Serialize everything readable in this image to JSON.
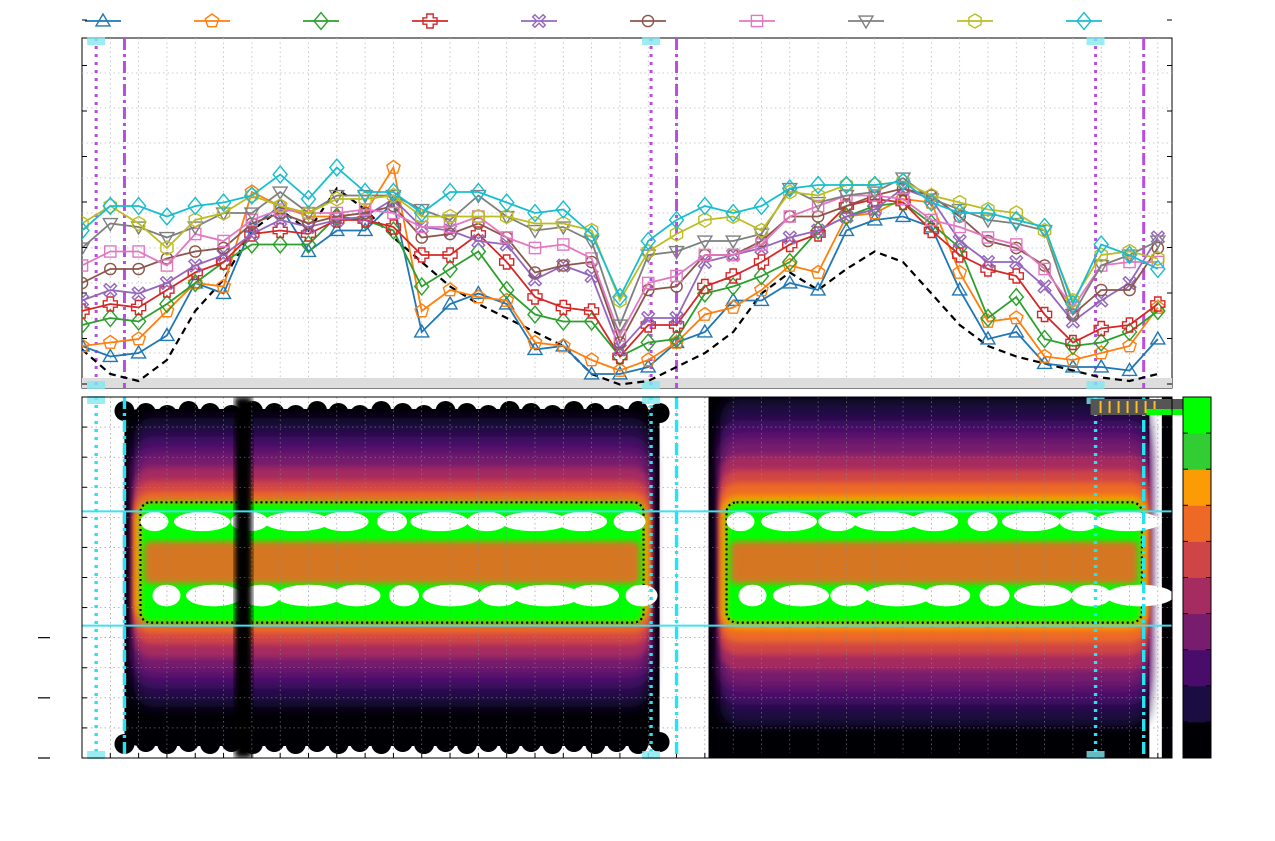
{
  "chart_data": [
    {
      "type": "line",
      "title": "",
      "xlabel": "",
      "ylabel": "",
      "grid": true,
      "legend_position": "top",
      "x": [
        0,
        1,
        2,
        3,
        4,
        5,
        6,
        7,
        8,
        9,
        10,
        11,
        12,
        13,
        14,
        15,
        16,
        17,
        18,
        19,
        20,
        21,
        22,
        23,
        24,
        25,
        26,
        27,
        28,
        29,
        30,
        31,
        32,
        33,
        34,
        35,
        36,
        37,
        38
      ],
      "xlim": [
        0,
        38.5
      ],
      "ylim": [
        0,
        10
      ],
      "series": [
        {
          "color": "#1f77b4",
          "marker": "triangle-up",
          "values": [
            1.2,
            0.9,
            1.0,
            1.5,
            3.0,
            2.7,
            4.6,
            5.2,
            3.9,
            4.5,
            4.5,
            5.3,
            1.6,
            2.4,
            2.7,
            2.4,
            1.1,
            1.2,
            0.4,
            0.4,
            0.6,
            1.3,
            1.6,
            2.5,
            2.5,
            3.0,
            2.8,
            4.5,
            4.8,
            4.9,
            4.6,
            2.8,
            1.4,
            1.6,
            0.7,
            0.6,
            0.6,
            0.5,
            1.4
          ]
        },
        {
          "color": "#ff7f0e",
          "marker": "pentagon",
          "values": [
            1.2,
            1.3,
            1.4,
            2.2,
            3.0,
            2.9,
            5.6,
            5.2,
            4.9,
            4.9,
            5.0,
            6.3,
            2.2,
            2.8,
            2.6,
            2.5,
            1.3,
            1.2,
            0.8,
            0.5,
            0.8,
            1.3,
            2.1,
            2.3,
            2.8,
            3.5,
            3.3,
            4.9,
            5.0,
            5.4,
            5.3,
            3.3,
            1.9,
            2.0,
            0.9,
            0.8,
            1.0,
            1.2,
            2.3
          ]
        },
        {
          "color": "#2ca02c",
          "marker": "diamond",
          "values": [
            1.8,
            2.0,
            1.9,
            2.4,
            3.0,
            3.6,
            4.1,
            4.1,
            4.1,
            4.9,
            4.8,
            4.5,
            2.9,
            3.4,
            3.9,
            2.8,
            2.1,
            1.9,
            1.9,
            0.9,
            1.3,
            1.4,
            2.7,
            2.9,
            3.2,
            3.6,
            4.5,
            4.9,
            5.2,
            5.3,
            4.7,
            4.0,
            2.0,
            2.6,
            1.4,
            1.2,
            1.3,
            1.6,
            2.2
          ]
        },
        {
          "color": "#d62728",
          "marker": "plus",
          "values": [
            2.2,
            2.4,
            2.3,
            2.8,
            3.3,
            3.6,
            4.4,
            4.5,
            4.4,
            4.8,
            4.8,
            4.6,
            3.8,
            3.8,
            4.4,
            3.6,
            2.6,
            2.3,
            2.2,
            0.9,
            1.8,
            1.8,
            2.9,
            3.2,
            3.6,
            4.1,
            4.4,
            5.2,
            5.4,
            5.3,
            4.5,
            3.8,
            3.4,
            3.2,
            2.1,
            1.3,
            1.7,
            1.8,
            2.4
          ]
        },
        {
          "color": "#9467bd",
          "marker": "x",
          "values": [
            2.5,
            2.8,
            2.7,
            3.0,
            3.5,
            3.8,
            4.4,
            4.8,
            4.6,
            4.8,
            4.9,
            5.4,
            4.6,
            4.5,
            4.2,
            4.1,
            3.1,
            3.5,
            3.2,
            1.1,
            2.0,
            2.0,
            3.6,
            3.8,
            4.0,
            4.3,
            4.5,
            4.9,
            5.1,
            5.7,
            5.4,
            4.2,
            3.6,
            3.6,
            2.9,
            1.9,
            2.5,
            3.0,
            4.3
          ]
        },
        {
          "color": "#8c564b",
          "marker": "circle",
          "values": [
            3.0,
            3.4,
            3.4,
            3.7,
            3.9,
            4.0,
            4.7,
            5.0,
            4.7,
            4.9,
            5.0,
            5.2,
            4.3,
            4.4,
            4.7,
            4.3,
            3.3,
            3.5,
            3.6,
            1.3,
            2.8,
            2.9,
            3.8,
            3.8,
            4.2,
            4.9,
            4.9,
            5.2,
            5.5,
            5.7,
            5.5,
            4.9,
            4.2,
            4.0,
            3.5,
            2.1,
            2.8,
            2.8,
            4.0
          ]
        },
        {
          "color": "#e377c2",
          "marker": "square",
          "values": [
            3.5,
            3.9,
            3.9,
            3.5,
            4.4,
            4.2,
            4.8,
            5.1,
            5.0,
            5.0,
            5.1,
            5.0,
            4.6,
            4.6,
            4.9,
            4.3,
            4.0,
            4.1,
            3.7,
            1.5,
            3.0,
            3.2,
            3.8,
            3.8,
            4.1,
            4.9,
            5.2,
            5.5,
            5.5,
            5.4,
            4.8,
            4.6,
            4.3,
            4.1,
            3.4,
            2.3,
            3.5,
            3.6,
            3.6
          ]
        },
        {
          "color": "#7f7f7f",
          "marker": "triangle-down",
          "values": [
            4.0,
            4.7,
            4.6,
            4.3,
            4.6,
            5.0,
            5.0,
            5.6,
            5.0,
            5.5,
            5.5,
            5.5,
            5.1,
            4.8,
            5.5,
            4.9,
            4.5,
            4.6,
            4.2,
            1.8,
            3.8,
            3.9,
            4.2,
            4.2,
            4.4,
            5.7,
            5.3,
            5.5,
            5.6,
            6.0,
            5.4,
            5.1,
            4.8,
            4.7,
            4.5,
            2.1,
            3.5,
            3.8,
            4.2
          ]
        },
        {
          "color": "#bcbd22",
          "marker": "hexagon",
          "values": [
            4.7,
            5.2,
            4.7,
            4.0,
            4.8,
            5.0,
            5.5,
            5.2,
            5.0,
            5.4,
            5.4,
            5.5,
            4.9,
            4.9,
            4.9,
            4.9,
            4.7,
            4.7,
            4.5,
            2.5,
            3.9,
            4.4,
            4.8,
            4.9,
            4.5,
            5.6,
            5.5,
            5.8,
            5.8,
            5.9,
            5.5,
            5.3,
            5.1,
            5.0,
            4.5,
            2.5,
            3.8,
            3.9,
            3.7
          ]
        },
        {
          "color": "#17becf",
          "marker": "diamond",
          "values": [
            4.5,
            5.2,
            5.2,
            4.9,
            5.2,
            5.3,
            5.5,
            6.1,
            5.4,
            6.3,
            5.6,
            5.6,
            5.0,
            5.6,
            5.6,
            5.3,
            5.0,
            5.1,
            4.4,
            2.6,
            4.2,
            4.8,
            5.2,
            5.0,
            5.2,
            5.7,
            5.8,
            5.8,
            5.8,
            5.9,
            5.3,
            5.0,
            5.0,
            4.8,
            4.6,
            2.4,
            4.1,
            3.8,
            3.4
          ]
        },
        {
          "color": "#000000",
          "dashed": true,
          "values": [
            1.1,
            0.4,
            0.2,
            0.8,
            2.2,
            3.1,
            4.5,
            5.1,
            4.5,
            5.7,
            5.1,
            4.3,
            3.6,
            2.9,
            2.4,
            2.0,
            1.6,
            1.2,
            0.4,
            0.1,
            0.2,
            0.6,
            1.0,
            1.6,
            2.7,
            3.3,
            2.8,
            3.4,
            3.9,
            3.6,
            2.7,
            1.8,
            1.2,
            0.9,
            0.7,
            0.5,
            0.3,
            0.2,
            0.4
          ]
        }
      ],
      "vertical_markers": [
        {
          "x": 0.5,
          "style": "dotted",
          "color": "#b84ee0"
        },
        {
          "x": 1.5,
          "style": "dashdot",
          "color": "#b84ee0"
        },
        {
          "x": 20.1,
          "style": "dotted",
          "color": "#b84ee0"
        },
        {
          "x": 21.0,
          "style": "dashdot",
          "color": "#b84ee0"
        },
        {
          "x": 35.8,
          "style": "dotted",
          "color": "#b84ee0"
        },
        {
          "x": 37.5,
          "style": "dashdot",
          "color": "#b84ee0"
        }
      ]
    },
    {
      "type": "heatmap",
      "title": "",
      "xlabel": "",
      "ylabel": "",
      "grid": true,
      "xlim": [
        0,
        38.5
      ],
      "ylim": [
        0,
        6
      ],
      "shown_ytick_marks": [
        0,
        1,
        2
      ],
      "palette": [
        "#000004",
        "#1b0c41",
        "#4a0c6b",
        "#781c6d",
        "#a52c60",
        "#cf4446",
        "#ed6925",
        "#fb9b06",
        "#32cd32",
        "#00ff00"
      ],
      "bands": [
        {
          "x_start": 1.5,
          "x_end": 20.4,
          "y_center": 3.25,
          "half_width": 1.55,
          "hot_half_width": 1.0
        },
        {
          "x_start": 22.2,
          "x_end": 38.0,
          "y_center": 3.25,
          "half_width": 1.75,
          "hot_half_width": 1.0
        }
      ],
      "gap": {
        "x_start": 5.4,
        "x_end": 6.0
      },
      "reference_lines": [
        {
          "y": 4.1,
          "color": "#40e0f0"
        },
        {
          "y": 2.2,
          "color": "#40e0f0"
        }
      ],
      "vertical_markers": [
        {
          "x": 0.5,
          "style": "dotted",
          "color": "#22e5f0"
        },
        {
          "x": 1.5,
          "style": "dashdot",
          "color": "#22e5f0"
        },
        {
          "x": 20.1,
          "style": "dotted",
          "color": "#22e5f0"
        },
        {
          "x": 21.0,
          "style": "dashdot",
          "color": "#22e5f0"
        },
        {
          "x": 35.8,
          "style": "dotted",
          "color": "#22e5f0"
        },
        {
          "x": 37.5,
          "style": "dashdot",
          "color": "#22e5f0"
        }
      ],
      "colorbar": {
        "levels": 10,
        "colors": [
          "#000004",
          "#1b0c41",
          "#4a0c6b",
          "#781c6d",
          "#a52c60",
          "#cf4446",
          "#ed6925",
          "#fb9b06",
          "#32cd32",
          "#00ff00"
        ]
      }
    }
  ]
}
